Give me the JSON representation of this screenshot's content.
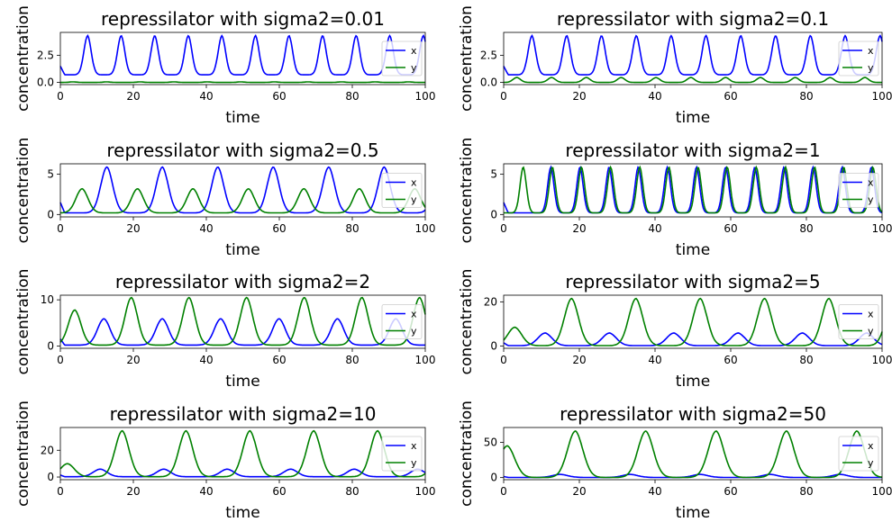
{
  "figure": {
    "description_colors": {
      "x": "#0000ff",
      "y": "#008000"
    }
  },
  "chart_data": [
    {
      "type": "line",
      "title": "repressilator with sigma2=0.01",
      "xlabel": "time",
      "ylabel": "concentration",
      "xlim": [
        0,
        100
      ],
      "ylim": [
        -0.2,
        4.6
      ],
      "xticks": [
        "0",
        "20",
        "40",
        "60",
        "80",
        "100"
      ],
      "yticks": [
        "0.0",
        "2.5"
      ],
      "ytick_values": [
        0,
        2.5
      ],
      "legend": "right",
      "series": [
        {
          "name": "x",
          "color": "#0000ff",
          "x0": 0,
          "v0": 1.5,
          "period": 9.2,
          "first_peak": 7.5,
          "peak": 4.3,
          "trough": 0.7
        },
        {
          "name": "y",
          "color": "#008000",
          "x0": 0,
          "v0": 0.0,
          "period": 9.2,
          "first_peak": 3.5,
          "peak": 0.05,
          "trough": 0.0
        }
      ]
    },
    {
      "type": "line",
      "title": "repressilator with sigma2=0.1",
      "xlabel": "time",
      "ylabel": "concentration",
      "xlim": [
        0,
        100
      ],
      "ylim": [
        -0.2,
        4.6
      ],
      "xticks": [
        "0",
        "20",
        "40",
        "60",
        "80",
        "100"
      ],
      "yticks": [
        "0.0",
        "2.5"
      ],
      "ytick_values": [
        0,
        2.5
      ],
      "legend": "right",
      "series": [
        {
          "name": "x",
          "color": "#0000ff",
          "x0": 0,
          "v0": 1.5,
          "period": 9.2,
          "first_peak": 7.5,
          "peak": 4.3,
          "trough": 0.7
        },
        {
          "name": "y",
          "color": "#008000",
          "x0": 0,
          "v0": 0.0,
          "period": 9.2,
          "first_peak": 3.5,
          "peak": 0.45,
          "trough": 0.0
        }
      ]
    },
    {
      "type": "line",
      "title": "repressilator with sigma2=0.5",
      "xlabel": "time",
      "ylabel": "concentration",
      "xlim": [
        0,
        100
      ],
      "ylim": [
        -0.3,
        6.3
      ],
      "xticks": [
        "0",
        "20",
        "40",
        "60",
        "80",
        "100"
      ],
      "yticks": [
        "0",
        "5"
      ],
      "ytick_values": [
        0,
        5
      ],
      "legend": "right",
      "series": [
        {
          "name": "x",
          "color": "#0000ff",
          "x0": 0,
          "v0": 1.5,
          "period": 15.2,
          "first_peak": 12.8,
          "peak": 5.9,
          "trough": 0.2
        },
        {
          "name": "y",
          "color": "#008000",
          "x0": 0,
          "v0": 0.0,
          "period": 15.2,
          "first_peak": 6.0,
          "peak": 3.2,
          "trough": 0.2
        }
      ]
    },
    {
      "type": "line",
      "title": "repressilator with sigma2=1",
      "xlabel": "time",
      "ylabel": "concentration",
      "xlim": [
        0,
        100
      ],
      "ylim": [
        -0.3,
        6.3
      ],
      "xticks": [
        "0",
        "20",
        "40",
        "60",
        "80",
        "100"
      ],
      "yticks": [
        "0",
        "5"
      ],
      "ytick_values": [
        0,
        5
      ],
      "legend": "right",
      "series": [
        {
          "name": "x",
          "color": "#0000ff",
          "x0": 0,
          "v0": 1.5,
          "period": 7.7,
          "first_peak": 12.5,
          "peak": 5.9,
          "trough": 0.2
        },
        {
          "name": "y",
          "color": "#008000",
          "x0": 0,
          "v0": 0.0,
          "period": 7.7,
          "first_peak": 5.2,
          "peak": 5.9,
          "trough": 0.2
        }
      ]
    },
    {
      "type": "line",
      "title": "repressilator with sigma2=2",
      "xlabel": "time",
      "ylabel": "concentration",
      "xlim": [
        0,
        100
      ],
      "ylim": [
        -0.5,
        11.0
      ],
      "xticks": [
        "0",
        "20",
        "40",
        "60",
        "80",
        "100"
      ],
      "yticks": [
        "0",
        "10"
      ],
      "ytick_values": [
        0,
        10
      ],
      "legend": "right",
      "series": [
        {
          "name": "x",
          "color": "#0000ff",
          "x0": 0,
          "v0": 1.5,
          "period": 16.0,
          "first_peak": 12.0,
          "peak": 5.9,
          "trough": 0.2
        },
        {
          "name": "y",
          "color": "#008000",
          "x0": 0,
          "v0": 0.0,
          "period": 15.8,
          "first_peak": 19.5,
          "peak": 10.5,
          "trough": 0.2,
          "pre_peak": {
            "x": 4.0,
            "value": 7.8
          }
        }
      ]
    },
    {
      "type": "line",
      "title": "repressilator with sigma2=5",
      "xlabel": "time",
      "ylabel": "concentration",
      "xlim": [
        0,
        100
      ],
      "ylim": [
        -1,
        23
      ],
      "xticks": [
        "0",
        "20",
        "40",
        "60",
        "80",
        "100"
      ],
      "yticks": [
        "0",
        "20"
      ],
      "ytick_values": [
        0,
        20
      ],
      "legend": "right",
      "series": [
        {
          "name": "x",
          "color": "#0000ff",
          "x0": 0,
          "v0": 1.5,
          "period": 17.0,
          "first_peak": 11.0,
          "peak": 5.9,
          "trough": 0.2
        },
        {
          "name": "y",
          "color": "#008000",
          "x0": 0,
          "v0": 0.0,
          "period": 17.0,
          "first_peak": 18.0,
          "peak": 21.5,
          "trough": 0.2,
          "pre_peak": {
            "x": 3.0,
            "value": 8.5
          }
        }
      ]
    },
    {
      "type": "line",
      "title": "repressilator with sigma2=10",
      "xlabel": "time",
      "ylabel": "concentration",
      "xlim": [
        0,
        100
      ],
      "ylim": [
        -2,
        37
      ],
      "xticks": [
        "0",
        "20",
        "40",
        "60",
        "80",
        "100"
      ],
      "yticks": [
        "0",
        "20"
      ],
      "ytick_values": [
        0,
        20
      ],
      "legend": "right",
      "series": [
        {
          "name": "x",
          "color": "#0000ff",
          "x0": 0,
          "v0": 1.5,
          "period": 17.4,
          "first_peak": 11.0,
          "peak": 5.9,
          "trough": 0.2
        },
        {
          "name": "y",
          "color": "#008000",
          "x0": 0,
          "v0": 0.0,
          "period": 17.5,
          "first_peak": 17.0,
          "peak": 34.5,
          "trough": 0.2,
          "pre_peak": {
            "x": 2.0,
            "value": 10.0
          }
        }
      ]
    },
    {
      "type": "line",
      "title": "repressilator with sigma2=50",
      "xlabel": "time",
      "ylabel": "concentration",
      "xlim": [
        0,
        100
      ],
      "ylim": [
        -3,
        71
      ],
      "xticks": [
        "0",
        "20",
        "40",
        "60",
        "80",
        "100"
      ],
      "yticks": [
        "0",
        "50"
      ],
      "ytick_values": [
        0,
        50
      ],
      "legend": "right",
      "series": [
        {
          "name": "x",
          "color": "#0000ff",
          "x0": 0,
          "v0": 1.5,
          "period": 18.5,
          "first_peak": 15.0,
          "peak": 4.5,
          "trough": 0.2
        },
        {
          "name": "y",
          "color": "#008000",
          "x0": 0,
          "v0": 0.0,
          "period": 18.6,
          "first_peak": 19.0,
          "peak": 66.0,
          "trough": 0.2,
          "pre_peak": {
            "x": 1.0,
            "value": 45.0
          }
        }
      ]
    }
  ]
}
